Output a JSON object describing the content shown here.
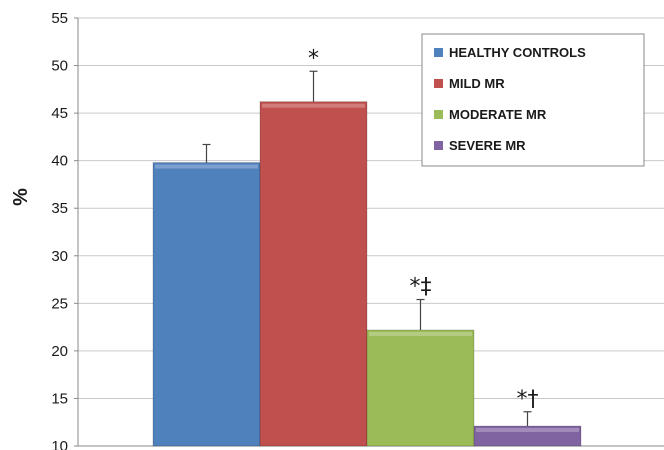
{
  "chart_data": {
    "type": "bar",
    "ylabel": "%",
    "ylim": [
      10,
      55
    ],
    "yticks": [
      10,
      15,
      20,
      25,
      30,
      35,
      40,
      45,
      50,
      55
    ],
    "grid": true,
    "legend_position": "top-right",
    "series": [
      {
        "name": "HEALTHY CONTROLS",
        "value": 39.8,
        "error": 1.9,
        "color": "#4f81bd",
        "annotation": ""
      },
      {
        "name": "MILD MR",
        "value": 46.2,
        "error": 3.2,
        "color": "#c0504d",
        "annotation": "*"
      },
      {
        "name": "MODERATE MR",
        "value": 22.2,
        "error": 3.2,
        "color": "#9bbb59",
        "annotation": "*‡"
      },
      {
        "name": "SEVERE MR",
        "value": 12.1,
        "error": 1.5,
        "color": "#8064a2",
        "annotation": "*†"
      }
    ]
  }
}
